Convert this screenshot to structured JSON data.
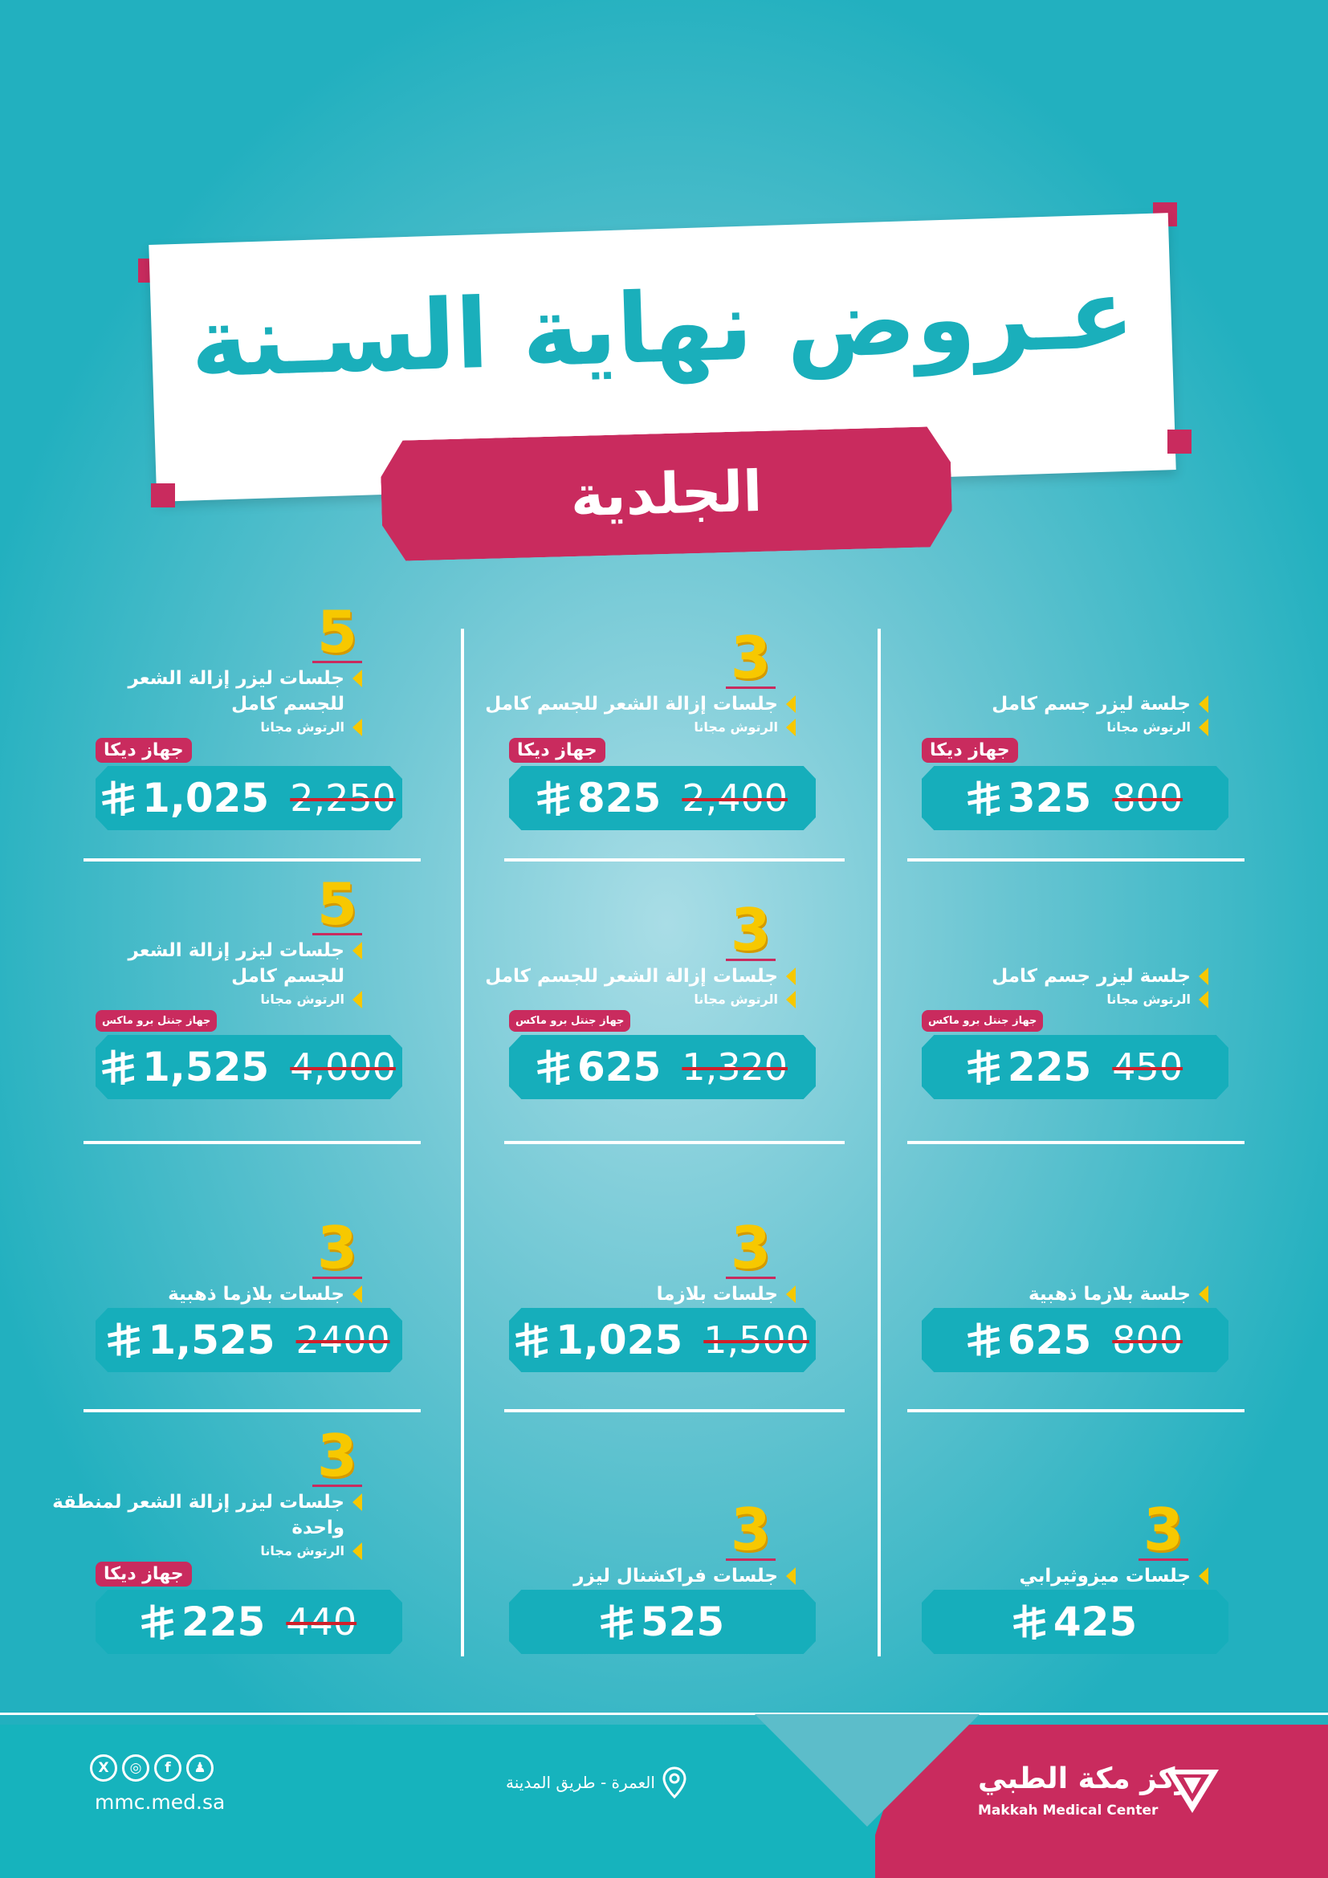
{
  "header": {
    "title": "عـروض نهاية السـنة",
    "category": "الجلدية"
  },
  "colors": {
    "teal": "#16aebb",
    "pink": "#c92b5e",
    "yellow": "#f7c800",
    "strike": "#d0202a"
  },
  "offers": [
    {
      "col": "right",
      "row": 1,
      "count": "",
      "lines": [
        "جلسة ليزر جسم كامل",
        "الرتوش مجانا"
      ],
      "badge": "جهاز ديكا",
      "old_price": "800",
      "new_price": "325"
    },
    {
      "col": "right",
      "row": 2,
      "count": "",
      "lines": [
        "جلسة ليزر جسم كامل",
        "الرتوش مجانا"
      ],
      "badge": "جهاز جنتل برو ماكس",
      "old_price": "450",
      "new_price": "225"
    },
    {
      "col": "right",
      "row": 3,
      "count": "",
      "lines": [
        "جلسة بلازما ذهبية"
      ],
      "badge": "",
      "old_price": "800",
      "new_price": "625"
    },
    {
      "col": "right",
      "row": 4,
      "count": "3",
      "lines": [
        "جلسات ميزوثيرابي"
      ],
      "badge": "",
      "old_price": "",
      "new_price": "425"
    },
    {
      "col": "middle",
      "row": 1,
      "count": "3",
      "lines": [
        "جلسات إزالة الشعر للجسم كامل",
        "الرتوش مجانا"
      ],
      "badge": "جهاز ديكا",
      "old_price": "2,400",
      "new_price": "825"
    },
    {
      "col": "middle",
      "row": 2,
      "count": "3",
      "lines": [
        "جلسات إزالة الشعر للجسم كامل",
        "الرتوش مجانا"
      ],
      "badge": "جهاز جنتل برو ماكس",
      "old_price": "1,320",
      "new_price": "625"
    },
    {
      "col": "middle",
      "row": 3,
      "count": "3",
      "lines": [
        "جلسات بلازما"
      ],
      "badge": "",
      "old_price": "1,500",
      "new_price": "1,025"
    },
    {
      "col": "middle",
      "row": 4,
      "count": "3",
      "lines": [
        "جلسات فراكشنال ليزر"
      ],
      "badge": "",
      "old_price": "",
      "new_price": "525"
    },
    {
      "col": "left",
      "row": 1,
      "count": "5",
      "lines": [
        "جلسات ليزر إزالة الشعر",
        "للجسم كامل",
        "الرتوش مجانا"
      ],
      "badge": "جهاز ديكا",
      "old_price": "2,250",
      "new_price": "1,025"
    },
    {
      "col": "left",
      "row": 2,
      "count": "5",
      "lines": [
        "جلسات ليزر إزالة الشعر",
        "للجسم كامل",
        "الرتوش مجانا"
      ],
      "badge": "جهاز جنتل برو ماكس",
      "old_price": "4,000",
      "new_price": "1,525"
    },
    {
      "col": "left",
      "row": 3,
      "count": "3",
      "lines": [
        "جلسات بلازما ذهبية"
      ],
      "badge": "",
      "old_price": "2400",
      "new_price": "1,525"
    },
    {
      "col": "left",
      "row": 4,
      "count": "3",
      "lines": [
        "جلسات ليزر إزالة الشعر لمنطقة",
        "واحدة",
        "الرتوش مجانا"
      ],
      "badge": "جهاز ديكا",
      "old_price": "440",
      "new_price": "225"
    }
  ],
  "footer": {
    "social_icons": [
      "x-icon",
      "instagram-icon",
      "facebook-icon",
      "snapchat-icon"
    ],
    "website": "mmc.med.sa",
    "address": "العمرة - طريق المدينة",
    "logo_ar": "مركز مكة الطبي",
    "logo_en": "Makkah Medical Center"
  }
}
